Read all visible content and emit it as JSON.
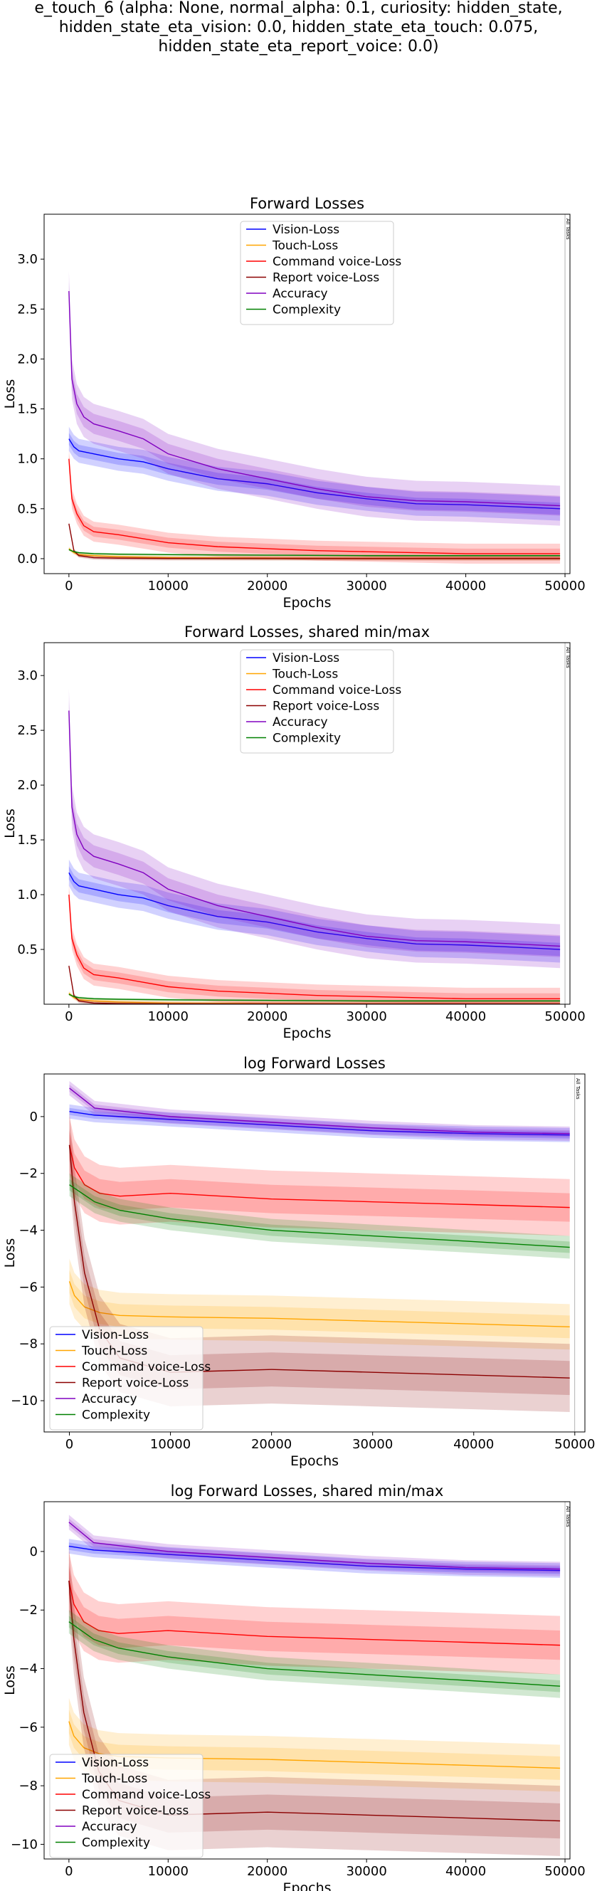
{
  "suptitle_lines": [
    "e_touch_6 (alpha: None, normal_alpha: 0.1, curiosity: hidden_state,",
    "hidden_state_eta_vision: 0.0, hidden_state_eta_touch: 0.075,",
    "hidden_state_eta_report_voice: 0.0)"
  ],
  "colors": {
    "Vision-Loss": "#0000ff",
    "Touch-Loss": "#ffa500",
    "Command voice-Loss": "#ff0000",
    "Report voice-Loss": "#8b0000",
    "Accuracy": "#8000c0",
    "Complexity": "#008000"
  },
  "chart_data": [
    {
      "type": "line",
      "title": "Forward Losses",
      "xlabel": "Epochs",
      "ylabel": "Loss",
      "xlim": [
        -2500,
        50500
      ],
      "ylim": [
        -0.15,
        3.45
      ],
      "xticks": [
        0,
        10000,
        20000,
        30000,
        40000,
        50000
      ],
      "yticks": [
        0.0,
        0.5,
        1.0,
        1.5,
        2.0,
        2.5,
        3.0
      ],
      "ytick_labels": [
        "0.0",
        "0.5",
        "1.0",
        "1.5",
        "2.0",
        "2.5",
        "3.0"
      ],
      "legend": "upper-center",
      "vline": {
        "x": 50000,
        "label": "All Tasks"
      },
      "series": [
        {
          "name": "Vision-Loss",
          "x": [
            0,
            500,
            1000,
            2500,
            5000,
            7500,
            10000,
            15000,
            20000,
            25000,
            30000,
            35000,
            40000,
            45000,
            49500
          ],
          "y": [
            1.2,
            1.12,
            1.08,
            1.05,
            1.0,
            0.97,
            0.9,
            0.8,
            0.75,
            0.66,
            0.6,
            0.55,
            0.54,
            0.52,
            0.5
          ],
          "band": 0.12
        },
        {
          "name": "Touch-Loss",
          "x": [
            0,
            500,
            1000,
            2500,
            5000,
            10000,
            20000,
            30000,
            40000,
            49500
          ],
          "y": [
            0.1,
            0.06,
            0.04,
            0.03,
            0.02,
            0.01,
            0.005,
            0.003,
            0.002,
            0.001
          ],
          "band": 0.02
        },
        {
          "name": "Command voice-Loss",
          "x": [
            0,
            300,
            800,
            1500,
            2500,
            5000,
            7500,
            10000,
            15000,
            20000,
            25000,
            30000,
            35000,
            40000,
            45000,
            49500
          ],
          "y": [
            1.0,
            0.6,
            0.45,
            0.33,
            0.27,
            0.24,
            0.2,
            0.16,
            0.12,
            0.1,
            0.08,
            0.07,
            0.06,
            0.05,
            0.05,
            0.05
          ],
          "band": 0.1
        },
        {
          "name": "Report voice-Loss",
          "x": [
            0,
            500,
            1000,
            2500,
            5000,
            10000,
            20000,
            30000,
            40000,
            49500
          ],
          "y": [
            0.35,
            0.08,
            0.03,
            0.01,
            0.005,
            0.002,
            0.001,
            0.001,
            0.001,
            0.001
          ],
          "band": 0.02
        },
        {
          "name": "Accuracy",
          "x": [
            0,
            300,
            800,
            1500,
            2500,
            5000,
            7500,
            10000,
            15000,
            20000,
            25000,
            30000,
            35000,
            40000,
            45000,
            49500
          ],
          "y": [
            2.68,
            1.8,
            1.55,
            1.42,
            1.35,
            1.28,
            1.2,
            1.05,
            0.9,
            0.8,
            0.7,
            0.62,
            0.58,
            0.57,
            0.55,
            0.53
          ],
          "band": 0.2
        },
        {
          "name": "Complexity",
          "x": [
            0,
            500,
            1000,
            2500,
            5000,
            10000,
            20000,
            30000,
            40000,
            49500
          ],
          "y": [
            0.09,
            0.07,
            0.06,
            0.05,
            0.045,
            0.04,
            0.035,
            0.03,
            0.03,
            0.03
          ],
          "band": 0.01
        }
      ]
    },
    {
      "type": "line",
      "title": "Forward Losses, shared min/max",
      "xlabel": "Epochs",
      "ylabel": "Loss",
      "xlim": [
        -2500,
        50500
      ],
      "ylim": [
        0.0,
        3.3
      ],
      "xticks": [
        0,
        10000,
        20000,
        30000,
        40000,
        50000
      ],
      "yticks": [
        0.5,
        1.0,
        1.5,
        2.0,
        2.5,
        3.0
      ],
      "ytick_labels": [
        "0.5",
        "1.0",
        "1.5",
        "2.0",
        "2.5",
        "3.0"
      ],
      "legend": "upper-center",
      "vline": {
        "x": 50000,
        "label": "All Tasks"
      },
      "series": [
        {
          "name": "Vision-Loss",
          "x": [
            0,
            500,
            1000,
            2500,
            5000,
            7500,
            10000,
            15000,
            20000,
            25000,
            30000,
            35000,
            40000,
            45000,
            49500
          ],
          "y": [
            1.2,
            1.12,
            1.08,
            1.05,
            1.0,
            0.97,
            0.9,
            0.8,
            0.75,
            0.66,
            0.6,
            0.55,
            0.54,
            0.52,
            0.5
          ],
          "band": 0.12
        },
        {
          "name": "Touch-Loss",
          "x": [
            0,
            500,
            1000,
            2500,
            5000,
            10000,
            20000,
            30000,
            40000,
            49500
          ],
          "y": [
            0.1,
            0.06,
            0.04,
            0.03,
            0.02,
            0.01,
            0.005,
            0.003,
            0.002,
            0.001
          ],
          "band": 0.02
        },
        {
          "name": "Command voice-Loss",
          "x": [
            0,
            300,
            800,
            1500,
            2500,
            5000,
            7500,
            10000,
            15000,
            20000,
            25000,
            30000,
            35000,
            40000,
            45000,
            49500
          ],
          "y": [
            1.0,
            0.6,
            0.45,
            0.33,
            0.27,
            0.24,
            0.2,
            0.16,
            0.12,
            0.1,
            0.08,
            0.07,
            0.06,
            0.05,
            0.05,
            0.05
          ],
          "band": 0.1
        },
        {
          "name": "Report voice-Loss",
          "x": [
            0,
            500,
            1000,
            2500,
            5000,
            10000,
            20000,
            30000,
            40000,
            49500
          ],
          "y": [
            0.35,
            0.08,
            0.03,
            0.01,
            0.005,
            0.002,
            0.001,
            0.001,
            0.001,
            0.001
          ],
          "band": 0.02
        },
        {
          "name": "Accuracy",
          "x": [
            0,
            300,
            800,
            1500,
            2500,
            5000,
            7500,
            10000,
            15000,
            20000,
            25000,
            30000,
            35000,
            40000,
            45000,
            49500
          ],
          "y": [
            2.68,
            1.8,
            1.55,
            1.42,
            1.35,
            1.28,
            1.2,
            1.05,
            0.9,
            0.8,
            0.7,
            0.62,
            0.58,
            0.57,
            0.55,
            0.53
          ],
          "band": 0.2
        },
        {
          "name": "Complexity",
          "x": [
            0,
            500,
            1000,
            2500,
            5000,
            10000,
            20000,
            30000,
            40000,
            49500
          ],
          "y": [
            0.09,
            0.07,
            0.06,
            0.05,
            0.045,
            0.04,
            0.035,
            0.03,
            0.03,
            0.03
          ],
          "band": 0.01
        }
      ]
    },
    {
      "type": "line",
      "title": "log Forward Losses",
      "xlabel": "Epochs",
      "ylabel": "Loss",
      "xlim": [
        -2500,
        51000
      ],
      "ylim": [
        -11.1,
        1.5
      ],
      "xticks": [
        0,
        10000,
        20000,
        30000,
        40000,
        50000
      ],
      "yticks": [
        -10,
        -8,
        -6,
        -4,
        -2,
        0
      ],
      "ytick_labels": [
        "−10",
        "−8",
        "−6",
        "−4",
        "−2",
        "0"
      ],
      "legend": "lower-left",
      "vline": {
        "x": 50000,
        "label": "All Tasks"
      },
      "series": [
        {
          "name": "Vision-Loss",
          "x": [
            0,
            2500,
            5000,
            10000,
            20000,
            30000,
            40000,
            49500
          ],
          "y": [
            0.18,
            0.05,
            0.0,
            -0.1,
            -0.3,
            -0.5,
            -0.6,
            -0.65
          ],
          "band": 0.25
        },
        {
          "name": "Touch-Loss",
          "x": [
            0,
            500,
            1500,
            3000,
            5000,
            10000,
            20000,
            30000,
            40000,
            49500
          ],
          "y": [
            -5.8,
            -6.3,
            -6.7,
            -6.9,
            -7.0,
            -7.05,
            -7.1,
            -7.2,
            -7.3,
            -7.4
          ],
          "band": 0.8
        },
        {
          "name": "Command voice-Loss",
          "x": [
            0,
            500,
            1500,
            3000,
            5000,
            10000,
            20000,
            30000,
            40000,
            49500
          ],
          "y": [
            -1.0,
            -1.8,
            -2.4,
            -2.7,
            -2.8,
            -2.7,
            -2.9,
            -3.0,
            -3.1,
            -3.2
          ],
          "band": 1.0
        },
        {
          "name": "Report voice-Loss",
          "x": [
            0,
            500,
            1500,
            3000,
            5000,
            10000,
            20000,
            30000,
            40000,
            49500
          ],
          "y": [
            -1.0,
            -3.0,
            -5.5,
            -7.5,
            -8.5,
            -9.0,
            -8.9,
            -9.0,
            -9.1,
            -9.2
          ],
          "band": 1.2
        },
        {
          "name": "Accuracy",
          "x": [
            0,
            2500,
            5000,
            10000,
            20000,
            30000,
            40000,
            49500
          ],
          "y": [
            1.0,
            0.3,
            0.2,
            0.0,
            -0.2,
            -0.4,
            -0.55,
            -0.6
          ],
          "band": 0.25
        },
        {
          "name": "Complexity",
          "x": [
            0,
            2500,
            5000,
            10000,
            20000,
            30000,
            40000,
            49500
          ],
          "y": [
            -2.4,
            -3.0,
            -3.3,
            -3.6,
            -4.0,
            -4.2,
            -4.4,
            -4.6
          ],
          "band": 0.4
        }
      ]
    },
    {
      "type": "line",
      "title": "log Forward Losses, shared min/max",
      "xlabel": "Epochs",
      "ylabel": "Loss",
      "xlim": [
        -2500,
        50500
      ],
      "ylim": [
        -10.5,
        1.7
      ],
      "xticks": [
        0,
        10000,
        20000,
        30000,
        40000,
        50000
      ],
      "yticks": [
        -10,
        -8,
        -6,
        -4,
        -2,
        0
      ],
      "ytick_labels": [
        "−10",
        "−8",
        "−6",
        "−4",
        "−2",
        "0"
      ],
      "legend": "lower-left",
      "vline": {
        "x": 50000,
        "label": "All Tasks"
      },
      "series": [
        {
          "name": "Vision-Loss",
          "x": [
            0,
            2500,
            5000,
            10000,
            20000,
            30000,
            40000,
            49500
          ],
          "y": [
            0.18,
            0.05,
            0.0,
            -0.1,
            -0.3,
            -0.5,
            -0.6,
            -0.65
          ],
          "band": 0.25
        },
        {
          "name": "Touch-Loss",
          "x": [
            0,
            500,
            1500,
            3000,
            5000,
            10000,
            20000,
            30000,
            40000,
            49500
          ],
          "y": [
            -5.8,
            -6.3,
            -6.7,
            -6.9,
            -7.0,
            -7.05,
            -7.1,
            -7.2,
            -7.3,
            -7.4
          ],
          "band": 0.8
        },
        {
          "name": "Command voice-Loss",
          "x": [
            0,
            500,
            1500,
            3000,
            5000,
            10000,
            20000,
            30000,
            40000,
            49500
          ],
          "y": [
            -1.0,
            -1.8,
            -2.4,
            -2.7,
            -2.8,
            -2.7,
            -2.9,
            -3.0,
            -3.1,
            -3.2
          ],
          "band": 1.0
        },
        {
          "name": "Report voice-Loss",
          "x": [
            0,
            500,
            1500,
            3000,
            5000,
            10000,
            20000,
            30000,
            40000,
            49500
          ],
          "y": [
            -1.0,
            -3.0,
            -5.5,
            -7.5,
            -8.5,
            -9.0,
            -8.9,
            -9.0,
            -9.1,
            -9.2
          ],
          "band": 1.2
        },
        {
          "name": "Accuracy",
          "x": [
            0,
            2500,
            5000,
            10000,
            20000,
            30000,
            40000,
            49500
          ],
          "y": [
            1.0,
            0.3,
            0.2,
            0.0,
            -0.2,
            -0.4,
            -0.55,
            -0.6
          ],
          "band": 0.25
        },
        {
          "name": "Complexity",
          "x": [
            0,
            2500,
            5000,
            10000,
            20000,
            30000,
            40000,
            49500
          ],
          "y": [
            -2.4,
            -3.0,
            -3.3,
            -3.6,
            -4.0,
            -4.2,
            -4.4,
            -4.6
          ],
          "band": 0.4
        }
      ]
    }
  ]
}
